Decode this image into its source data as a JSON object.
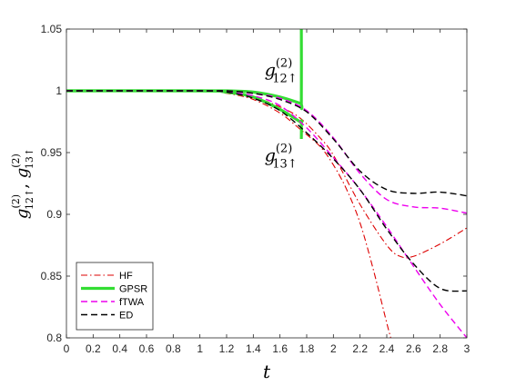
{
  "chart_data": {
    "type": "line",
    "title": "",
    "xlabel": "t",
    "ylabel": {
      "text": "g",
      "sup": "(2)",
      "sub1": "12↑",
      "sub2": "13↑",
      "separator": ", "
    },
    "xlim": [
      0,
      3
    ],
    "ylim": [
      0.8,
      1.05
    ],
    "x_ticks": [
      "0",
      "0.2",
      "0.4",
      "0.6",
      "0.8",
      "1",
      "1.2",
      "1.4",
      "1.6",
      "1.8",
      "2",
      "2.2",
      "2.4",
      "2.6",
      "2.8",
      "3"
    ],
    "y_ticks": [
      "0.8",
      "0.85",
      "0.9",
      "0.95",
      "1",
      "1.05"
    ],
    "grid": false,
    "legend_position": "bottom-left",
    "legend": [
      {
        "name": "HF",
        "color": "#dd0000",
        "style": "dashdot"
      },
      {
        "name": "GPSR",
        "color": "#33dd33",
        "style": "solid"
      },
      {
        "name": "fTWA",
        "color": "#ee00ee",
        "style": "dashed"
      },
      {
        "name": "ED",
        "color": "#000000",
        "style": "dashed"
      }
    ],
    "annotations": [
      {
        "base": "g",
        "sup": "(2)",
        "sub": "12↑",
        "x": 1.73,
        "y": 1.012
      },
      {
        "base": "g",
        "sup": "(2)",
        "sub": "13↑",
        "x": 1.73,
        "y": 0.943
      }
    ],
    "series": [
      {
        "id": "hf12",
        "legend_index": 0,
        "color": "#dd0000",
        "style": "dashdot",
        "x": [
          0,
          1.0,
          1.2,
          1.4,
          1.6,
          1.75,
          1.9,
          2.0,
          2.2,
          2.4,
          2.5,
          2.6,
          2.8,
          3.0
        ],
        "y": [
          1.0,
          1.0,
          0.999,
          0.995,
          0.987,
          0.978,
          0.962,
          0.948,
          0.908,
          0.875,
          0.866,
          0.866,
          0.876,
          0.889
        ]
      },
      {
        "id": "hf13",
        "legend_index": 0,
        "color": "#dd0000",
        "style": "dashdot",
        "x": [
          0,
          1.0,
          1.2,
          1.4,
          1.6,
          1.75,
          1.9,
          2.0,
          2.1,
          2.2,
          2.3,
          2.4,
          2.43
        ],
        "y": [
          1.0,
          1.0,
          0.998,
          0.993,
          0.982,
          0.969,
          0.955,
          0.94,
          0.92,
          0.893,
          0.855,
          0.812,
          0.8
        ]
      },
      {
        "id": "gpsr12",
        "legend_index": 1,
        "color": "#33dd33",
        "style": "solid",
        "x": [
          0,
          1.0,
          1.2,
          1.4,
          1.6,
          1.75,
          1.76,
          1.76
        ],
        "y": [
          1.0,
          1.0,
          1.0,
          0.999,
          0.995,
          0.99,
          0.99,
          1.05
        ]
      },
      {
        "id": "gpsr13",
        "legend_index": 1,
        "color": "#33dd33",
        "style": "solid",
        "x": [
          0,
          1.0,
          1.2,
          1.4,
          1.6,
          1.75,
          1.76,
          1.76
        ],
        "y": [
          1.0,
          1.0,
          0.999,
          0.995,
          0.985,
          0.975,
          0.975,
          0.961
        ]
      },
      {
        "id": "ftwa12",
        "legend_index": 2,
        "color": "#ee00ee",
        "style": "dashed",
        "x": [
          0,
          1.0,
          1.2,
          1.4,
          1.6,
          1.8,
          2.0,
          2.2,
          2.4,
          2.6,
          2.8,
          3.0
        ],
        "y": [
          1.0,
          1.0,
          1.0,
          0.998,
          0.994,
          0.984,
          0.962,
          0.933,
          0.912,
          0.906,
          0.905,
          0.901
        ]
      },
      {
        "id": "ftwa13",
        "legend_index": 2,
        "color": "#ee00ee",
        "style": "dashed",
        "x": [
          0,
          1.0,
          1.2,
          1.4,
          1.6,
          1.8,
          2.0,
          2.2,
          2.4,
          2.6,
          2.8,
          3.0
        ],
        "y": [
          1.0,
          1.0,
          0.999,
          0.996,
          0.988,
          0.97,
          0.946,
          0.92,
          0.89,
          0.858,
          0.827,
          0.8
        ]
      },
      {
        "id": "ed12",
        "legend_index": 3,
        "color": "#000000",
        "style": "dashed",
        "x": [
          0,
          1.0,
          1.2,
          1.4,
          1.6,
          1.8,
          2.0,
          2.2,
          2.4,
          2.6,
          2.8,
          3.0
        ],
        "y": [
          1.0,
          1.0,
          1.0,
          0.998,
          0.993,
          0.983,
          0.961,
          0.935,
          0.92,
          0.917,
          0.918,
          0.915
        ]
      },
      {
        "id": "ed13",
        "legend_index": 3,
        "color": "#000000",
        "style": "dashed",
        "x": [
          0,
          1.0,
          1.2,
          1.4,
          1.6,
          1.8,
          2.0,
          2.2,
          2.4,
          2.6,
          2.8,
          3.0
        ],
        "y": [
          1.0,
          1.0,
          0.999,
          0.994,
          0.984,
          0.966,
          0.945,
          0.92,
          0.888,
          0.86,
          0.84,
          0.838
        ]
      }
    ]
  }
}
